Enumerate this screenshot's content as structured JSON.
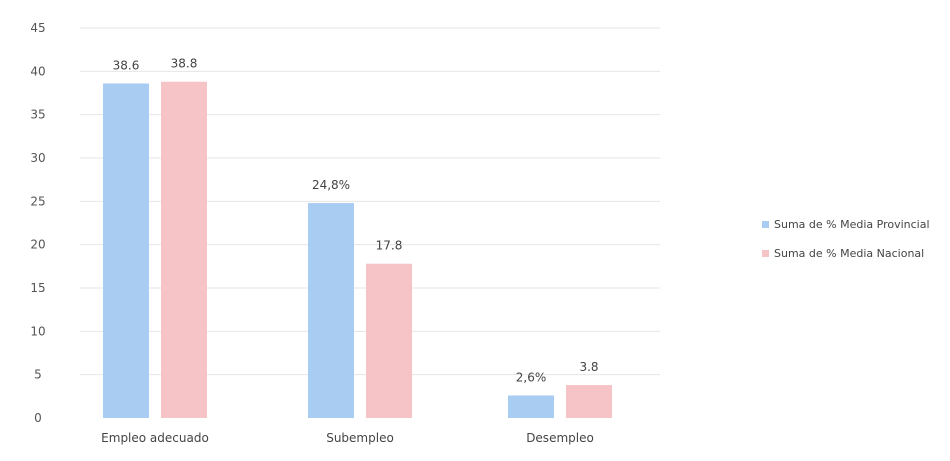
{
  "chart_data": {
    "type": "bar",
    "title": "",
    "xlabel": "",
    "ylabel": "",
    "categories": [
      "Empleo adecuado",
      "Subempleo",
      "Desempleo"
    ],
    "series": [
      {
        "name": "Suma de % Media Provincial",
        "color": "#a9ccf2",
        "values": [
          38.6,
          24.8,
          2.6
        ],
        "labels": [
          "38.6",
          "24,8%",
          "2,6%"
        ]
      },
      {
        "name": "Suma de % Media Nacional",
        "color": "#f6c3c6",
        "values": [
          38.8,
          17.8,
          3.8
        ],
        "labels": [
          "38.8",
          "17.8",
          "3.8"
        ]
      }
    ],
    "ylim": [
      0,
      45
    ],
    "yticks": [
      "0",
      "5",
      "10",
      "15",
      "20",
      "25",
      "30",
      "35",
      "40",
      "45"
    ],
    "grid": true,
    "legend_position": "right"
  }
}
